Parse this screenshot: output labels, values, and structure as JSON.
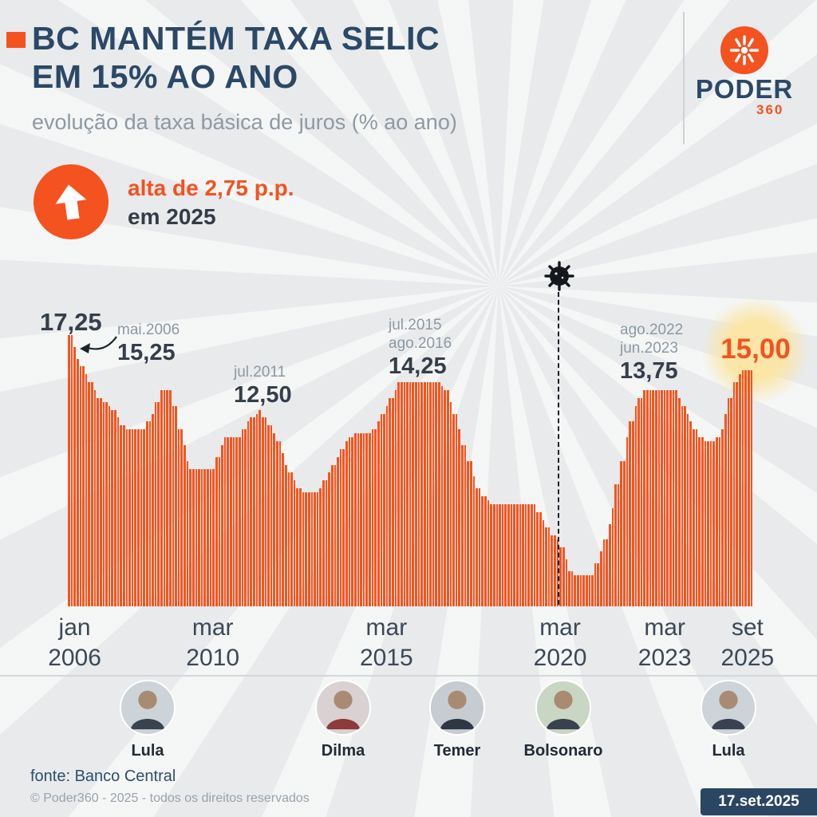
{
  "header": {
    "title_line1": "BC MANTÉM TAXA SELIC",
    "title_line2": "EM 15% AO ANO",
    "subtitle": "evolução da taxa básica de juros (% ao ano)"
  },
  "brand": {
    "name": "PODER",
    "number": "360"
  },
  "callout": {
    "line1": "alta de 2,75 p.p.",
    "line2": "em 2025"
  },
  "colors": {
    "accent_orange": "#f4521f",
    "navy": "#2b4866",
    "gray_text": "#8d99a3",
    "highlight_yellow": "#fbe6a8",
    "bar": "#f4551f"
  },
  "chart_data": {
    "type": "bar",
    "title": "evolução da taxa básica de juros (% ao ano)",
    "unit": "% ao ano",
    "frequency": "monthly",
    "x_start": "jan.2006",
    "x_end": "set.2025",
    "ylim": [
      0,
      17.25
    ],
    "bar_color": "#f4551f",
    "values": [
      17.25,
      17.25,
      16.5,
      15.75,
      15.25,
      15.25,
      14.75,
      14.25,
      14.25,
      13.75,
      13.25,
      13.25,
      13.0,
      13.0,
      12.75,
      12.5,
      12.5,
      12.0,
      11.5,
      11.5,
      11.25,
      11.25,
      11.25,
      11.25,
      11.25,
      11.25,
      11.25,
      11.75,
      11.75,
      12.25,
      13.0,
      13.0,
      13.75,
      13.75,
      13.75,
      13.75,
      12.75,
      12.75,
      11.25,
      11.25,
      10.25,
      9.25,
      8.75,
      8.75,
      8.75,
      8.75,
      8.75,
      8.75,
      8.75,
      8.75,
      8.75,
      9.5,
      9.5,
      10.25,
      10.75,
      10.75,
      10.75,
      10.75,
      10.75,
      10.75,
      11.25,
      11.25,
      11.75,
      12.0,
      12.0,
      12.25,
      12.5,
      12.0,
      12.0,
      11.5,
      11.5,
      11.0,
      10.5,
      10.5,
      9.75,
      9.0,
      8.5,
      8.5,
      8.0,
      7.5,
      7.5,
      7.25,
      7.25,
      7.25,
      7.25,
      7.25,
      7.25,
      7.5,
      8.0,
      8.0,
      8.5,
      9.0,
      9.0,
      9.5,
      10.0,
      10.0,
      10.5,
      10.75,
      10.75,
      11.0,
      11.0,
      11.0,
      11.0,
      11.0,
      11.0,
      11.25,
      11.25,
      11.75,
      12.25,
      12.25,
      12.75,
      13.25,
      13.25,
      13.75,
      14.25,
      14.25,
      14.25,
      14.25,
      14.25,
      14.25,
      14.25,
      14.25,
      14.25,
      14.25,
      14.25,
      14.25,
      14.25,
      14.25,
      14.25,
      14.0,
      13.75,
      13.75,
      13.0,
      12.25,
      12.25,
      11.25,
      10.25,
      10.25,
      9.25,
      9.25,
      8.25,
      7.5,
      7.5,
      7.0,
      7.0,
      6.75,
      6.5,
      6.5,
      6.5,
      6.5,
      6.5,
      6.5,
      6.5,
      6.5,
      6.5,
      6.5,
      6.5,
      6.5,
      6.5,
      6.5,
      6.5,
      6.5,
      6.0,
      6.0,
      5.5,
      5.0,
      5.0,
      4.5,
      4.5,
      4.25,
      3.75,
      3.75,
      3.0,
      2.25,
      2.25,
      2.0,
      2.0,
      2.0,
      2.0,
      2.0,
      2.0,
      2.0,
      2.75,
      2.75,
      3.5,
      4.25,
      4.25,
      5.25,
      6.25,
      7.75,
      7.75,
      9.25,
      9.25,
      10.75,
      11.75,
      11.75,
      12.75,
      13.25,
      13.25,
      13.75,
      13.75,
      13.75,
      13.75,
      13.75,
      13.75,
      13.75,
      13.75,
      13.75,
      13.75,
      13.75,
      13.75,
      13.25,
      12.75,
      12.75,
      12.25,
      11.75,
      11.25,
      11.25,
      10.75,
      10.75,
      10.5,
      10.5,
      10.5,
      10.5,
      10.75,
      10.75,
      11.25,
      12.25,
      13.25,
      13.25,
      14.25,
      14.25,
      14.75,
      15.0,
      15.0,
      15.0,
      15.0
    ],
    "annotations": [
      {
        "label": "17,25",
        "at": "jan.2006"
      },
      {
        "period": "mai.2006",
        "label": "15,25"
      },
      {
        "period": "jul.2011",
        "label": "12,50"
      },
      {
        "period_lines": [
          "jul.2015",
          "ago.2016"
        ],
        "label": "14,25"
      },
      {
        "event": "covid-19",
        "at": "mar.2020"
      },
      {
        "period_lines": [
          "ago.2022",
          "jun.2023"
        ],
        "label": "13,75"
      },
      {
        "label": "15,00",
        "at": "set.2025",
        "highlight": true
      }
    ],
    "x_ticks": [
      {
        "month": "jan",
        "year": "2006"
      },
      {
        "month": "mar",
        "year": "2010"
      },
      {
        "month": "mar",
        "year": "2015"
      },
      {
        "month": "mar",
        "year": "2020"
      },
      {
        "month": "mar",
        "year": "2023"
      },
      {
        "month": "set",
        "year": "2025"
      }
    ],
    "legend": false,
    "grid": false
  },
  "presidents": [
    {
      "name": "Lula"
    },
    {
      "name": "Dilma"
    },
    {
      "name": "Temer"
    },
    {
      "name": "Bolsonaro"
    },
    {
      "name": "Lula"
    }
  ],
  "footer": {
    "source": "fonte: Banco Central",
    "copyright": "© Poder360 - 2025 - todos os direitos reservados",
    "date": "17.set.2025"
  }
}
